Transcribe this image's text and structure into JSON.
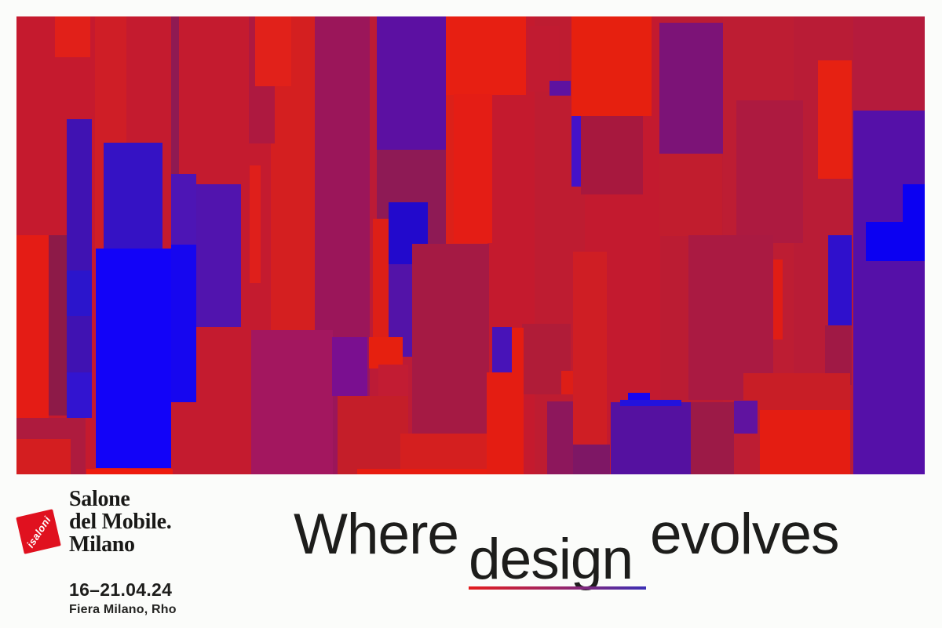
{
  "poster": {
    "background": "#fbfcfa",
    "text_color": "#1d1d1b"
  },
  "artwork": {
    "description": "Abstract collage of overlapping vertical rectangles in crimson, bright red, magenta, violet and blue",
    "rects": [
      [
        0,
        0,
        120,
        584,
        "#c51a2e"
      ],
      [
        100,
        0,
        40,
        584,
        "#cf1e26"
      ],
      [
        140,
        0,
        184,
        584,
        "#c41b2f"
      ],
      [
        324,
        0,
        56,
        584,
        "#d41f20"
      ],
      [
        380,
        0,
        70,
        584,
        "#9b165a"
      ],
      [
        450,
        0,
        95,
        584,
        "#bc1b36"
      ],
      [
        545,
        0,
        55,
        584,
        "#dc2019"
      ],
      [
        600,
        0,
        60,
        584,
        "#c41a2e"
      ],
      [
        660,
        0,
        64,
        584,
        "#be1c31"
      ],
      [
        724,
        0,
        96,
        584,
        "#c31a2f"
      ],
      [
        820,
        0,
        80,
        584,
        "#bb1c33"
      ],
      [
        900,
        0,
        90,
        584,
        "#bd1d33"
      ],
      [
        990,
        0,
        76,
        584,
        "#b91c36"
      ],
      [
        1066,
        0,
        91,
        584,
        "#9a1850"
      ],
      [
        49,
        0,
        45,
        52,
        "#e12019"
      ],
      [
        197,
        0,
        10,
        400,
        "#8f1a52"
      ],
      [
        296,
        0,
        33,
        162,
        "#ae1940"
      ],
      [
        304,
        0,
        46,
        89,
        "#e1211a"
      ],
      [
        297,
        190,
        14,
        150,
        "#df1f1b"
      ],
      [
        299,
        400,
        104,
        184,
        "#a3175f"
      ],
      [
        402,
        409,
        45,
        75,
        "#7a0f90"
      ],
      [
        459,
        0,
        88,
        170,
        "#5c10a2"
      ],
      [
        459,
        170,
        88,
        170,
        "#8e1a55"
      ],
      [
        547,
        0,
        102,
        100,
        "#e71f12"
      ],
      [
        557,
        99,
        49,
        190,
        "#e41d15"
      ],
      [
        652,
        12,
        40,
        84,
        "#c11b31"
      ],
      [
        679,
        82,
        27,
        19,
        "#5e12a0"
      ],
      [
        707,
        0,
        102,
        127,
        "#e6200f"
      ],
      [
        707,
        127,
        12,
        90,
        "#4412c8"
      ],
      [
        719,
        127,
        79,
        100,
        "#a7183e"
      ],
      [
        709,
        300,
        43,
        246,
        "#cf1e24"
      ],
      [
        644,
        392,
        62,
        90,
        "#b01c38"
      ],
      [
        694,
        452,
        15,
        30,
        "#dd1e17"
      ],
      [
        676,
        491,
        33,
        93,
        "#8d175c"
      ],
      [
        709,
        546,
        47,
        38,
        "#7e1765"
      ],
      [
        819,
        8,
        81,
        167,
        "#7c1377"
      ],
      [
        819,
        175,
        80,
        105,
        "#c11d2e"
      ],
      [
        917,
        107,
        85,
        182,
        "#ad1a40"
      ],
      [
        1066,
        0,
        91,
        122,
        "#b51b3c"
      ],
      [
        1021,
        56,
        43,
        151,
        "#e62112"
      ],
      [
        1066,
        120,
        91,
        464,
        "#5510a8"
      ],
      [
        1129,
        214,
        28,
        98,
        "#0b00f2"
      ],
      [
        1082,
        262,
        75,
        50,
        "#0b00f2"
      ],
      [
        64,
        131,
        32,
        381,
        "#4012b2"
      ],
      [
        64,
        324,
        32,
        58,
        "#2b15cc"
      ],
      [
        64,
        454,
        32,
        58,
        "#3214d0"
      ],
      [
        111,
        161,
        75,
        135,
        "#3512c4"
      ],
      [
        197,
        279,
        32,
        213,
        "#1606ef"
      ],
      [
        101,
        296,
        96,
        280,
        "#1203f8"
      ],
      [
        197,
        201,
        32,
        90,
        "#4d15b5"
      ],
      [
        229,
        214,
        57,
        182,
        "#5114ae"
      ],
      [
        0,
        279,
        41,
        233,
        "#e41c15"
      ],
      [
        41,
        279,
        23,
        230,
        "#8d1a48"
      ],
      [
        0,
        512,
        88,
        72,
        "#ae1b3e"
      ],
      [
        0,
        539,
        69,
        45,
        "#d41e20"
      ],
      [
        89,
        577,
        110,
        7,
        "#ee1b0d"
      ],
      [
        454,
        258,
        28,
        180,
        "#dd1f17"
      ],
      [
        474,
        237,
        50,
        83,
        "#2209cc"
      ],
      [
        474,
        316,
        30,
        118,
        "#5313a8"
      ],
      [
        504,
        290,
        98,
        242,
        "#a51a44"
      ],
      [
        449,
        409,
        43,
        40,
        "#e6200f"
      ],
      [
        461,
        444,
        38,
        140,
        "#c21c33"
      ],
      [
        409,
        484,
        90,
        100,
        "#c41e29"
      ],
      [
        489,
        532,
        110,
        52,
        "#d41f1f"
      ],
      [
        434,
        577,
        165,
        7,
        "#e81c10"
      ],
      [
        606,
        396,
        25,
        58,
        "#4813b8"
      ],
      [
        631,
        397,
        15,
        187,
        "#e41d12"
      ],
      [
        599,
        454,
        45,
        130,
        "#e41d12"
      ],
      [
        856,
        279,
        108,
        210,
        "#aa1a42"
      ],
      [
        964,
        310,
        12,
        102,
        "#e01d15"
      ],
      [
        1034,
        279,
        30,
        115,
        "#2f10cc"
      ],
      [
        1030,
        394,
        34,
        76,
        "#a01945"
      ],
      [
        926,
        455,
        136,
        47,
        "#c81e26"
      ],
      [
        947,
        502,
        115,
        82,
        "#e41d12"
      ],
      [
        757,
        492,
        102,
        92,
        "#5511a0"
      ],
      [
        779,
        480,
        28,
        12,
        "#1504f0"
      ],
      [
        769,
        489,
        78,
        8,
        "#2212dd"
      ],
      [
        859,
        492,
        55,
        92,
        "#9c1a47"
      ],
      [
        914,
        490,
        30,
        42,
        "#6013a0"
      ]
    ]
  },
  "brand": {
    "badge_text": "isaloni",
    "badge_color": "#e0111f",
    "wordmark_lines": [
      "Salone",
      "del Mobile.",
      "Milano"
    ],
    "dates": "16–21.04.24",
    "venue": "Fiera Milano, Rho"
  },
  "tagline": {
    "word_1": "Where",
    "word_2": "design",
    "word_3": "evolves",
    "underline_gradient": [
      "#e41c1c",
      "#93266e",
      "#3b2fb5"
    ]
  }
}
